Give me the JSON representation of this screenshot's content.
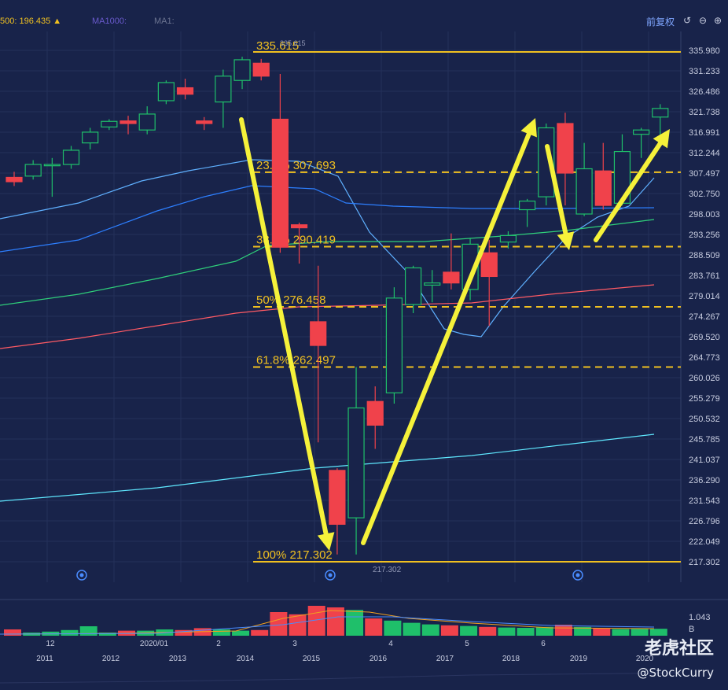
{
  "toolbar": {
    "ma_labels": [
      {
        "text": "500: 196.435 ▲",
        "color": "#f0c020"
      },
      {
        "text": "MA1000:",
        "color": "#6a5acd"
      },
      {
        "text": "MA1:",
        "color": "#6b7390"
      }
    ],
    "fuquan_label": "前复权",
    "controls": [
      {
        "name": "undo-icon",
        "glyph": "↺"
      },
      {
        "name": "zoom-out-icon",
        "glyph": "⊖"
      },
      {
        "name": "zoom-in-icon",
        "glyph": "⊕"
      }
    ]
  },
  "colors": {
    "background": "#18234a",
    "up": "#1fbf6a",
    "down": "#f0424b",
    "fib": "#f0c020",
    "arrow": "#f5f13a",
    "grid": "#24305a",
    "axis_text": "#c8cde0"
  },
  "watermark": {
    "brand": "老虎社区",
    "handle": "@StockCurry"
  },
  "chart_data": {
    "type": "candlestick",
    "ylim": [
      214.5,
      338.5
    ],
    "y_ticks": [
      "335.980",
      "331.233",
      "326.486",
      "321.738",
      "316.991",
      "312.244",
      "307.497",
      "302.750",
      "298.003",
      "293.256",
      "288.509",
      "283.761",
      "279.014",
      "274.267",
      "269.520",
      "264.773",
      "260.026",
      "255.279",
      "250.532",
      "245.785",
      "241.037",
      "236.290",
      "231.543",
      "226.796",
      "222.049",
      "217.302"
    ],
    "x_labels_top": [
      "12",
      "2020/01",
      "2",
      "3",
      "4",
      "5",
      "6"
    ],
    "x_labels_bottom": [
      "2011",
      "2012",
      "2013",
      "2014",
      "2015",
      "2016",
      "2017",
      "2018",
      "2019",
      "2020"
    ],
    "peak_label": "335.615",
    "low_label": "217.302",
    "fib_levels": [
      {
        "label": "23.6% 307.693",
        "price": 307.693,
        "style": "dashed"
      },
      {
        "label": "38.2% 290.419",
        "price": 290.419,
        "style": "dashed"
      },
      {
        "label": "50% 276.458",
        "price": 276.458,
        "style": "dashed"
      },
      {
        "label": "61.8% 262.497",
        "price": 262.497,
        "style": "dashed"
      },
      {
        "label": "100% 217.302",
        "price": 217.302,
        "style": "solid"
      }
    ],
    "top_line": {
      "label": "335.615",
      "price": 335.615
    },
    "candles": [
      {
        "o": 306.5,
        "h": 307.8,
        "c": 305.5,
        "l": 304.5
      },
      {
        "o": 306.8,
        "h": 310.5,
        "c": 309.5,
        "l": 306.0
      },
      {
        "o": 309.2,
        "h": 311.0,
        "c": 309.5,
        "l": 302.0
      },
      {
        "o": 309.5,
        "h": 313.8,
        "c": 312.8,
        "l": 308.5
      },
      {
        "o": 314.5,
        "h": 318.0,
        "c": 317.0,
        "l": 313.0
      },
      {
        "o": 318.2,
        "h": 320.0,
        "c": 319.5,
        "l": 317.5
      },
      {
        "o": 319.6,
        "h": 320.8,
        "c": 319.0,
        "l": 316.5
      },
      {
        "o": 317.5,
        "h": 323.0,
        "c": 321.2,
        "l": 316.5
      },
      {
        "o": 324.3,
        "h": 329.0,
        "c": 328.5,
        "l": 323.5
      },
      {
        "o": 327.3,
        "h": 329.4,
        "c": 325.8,
        "l": 324.6
      },
      {
        "o": 319.6,
        "h": 320.5,
        "c": 319.0,
        "l": 317.5
      },
      {
        "o": 324.0,
        "h": 331.5,
        "c": 330.0,
        "l": 318.0
      },
      {
        "o": 329.0,
        "h": 334.5,
        "c": 333.8,
        "l": 327.0
      },
      {
        "o": 333.0,
        "h": 334.0,
        "c": 330.0,
        "l": 329.0
      },
      {
        "o": 320.0,
        "h": 330.5,
        "c": 290.3,
        "l": 289.0
      },
      {
        "o": 295.5,
        "h": 296.0,
        "c": 294.8,
        "l": 286.5
      },
      {
        "o": 273.0,
        "h": 286.0,
        "c": 267.5,
        "l": 245.0
      },
      {
        "o": 238.5,
        "h": 239.0,
        "c": 226.0,
        "l": 219.0
      },
      {
        "o": 227.5,
        "h": 262.5,
        "c": 253.0,
        "l": 219.0
      },
      {
        "o": 254.5,
        "h": 258.0,
        "c": 249.0,
        "l": 243.5
      },
      {
        "o": 256.5,
        "h": 281.0,
        "c": 278.5,
        "l": 254.0
      },
      {
        "o": 277.0,
        "h": 286.0,
        "c": 285.5,
        "l": 275.0
      },
      {
        "o": 281.5,
        "h": 285.0,
        "c": 282.0,
        "l": 277.5
      },
      {
        "o": 284.5,
        "h": 293.5,
        "c": 282.0,
        "l": 280.5
      },
      {
        "o": 280.5,
        "h": 292.5,
        "c": 291.0,
        "l": 278.0
      },
      {
        "o": 289.0,
        "h": 292.0,
        "c": 283.5,
        "l": 272.0
      },
      {
        "o": 291.5,
        "h": 294.0,
        "c": 293.0,
        "l": 290.0
      },
      {
        "o": 299.0,
        "h": 301.5,
        "c": 301.0,
        "l": 295.0
      },
      {
        "o": 302.0,
        "h": 319.0,
        "c": 318.0,
        "l": 300.0
      },
      {
        "o": 319.0,
        "h": 321.5,
        "c": 307.5,
        "l": 300.0
      },
      {
        "o": 298.0,
        "h": 314.5,
        "c": 308.5,
        "l": 297.5
      },
      {
        "o": 308.0,
        "h": 314.5,
        "c": 300.0,
        "l": 299.0
      },
      {
        "o": 300.5,
        "h": 316.5,
        "c": 312.5,
        "l": 300.0
      },
      {
        "o": 316.5,
        "h": 318.0,
        "c": 317.5,
        "l": 311.0
      },
      {
        "o": 320.5,
        "h": 323.5,
        "c": 322.5,
        "l": 314.0
      }
    ],
    "volume": {
      "label": "1.043\nB",
      "bars": [
        0.2,
        0.1,
        0.13,
        0.18,
        0.3,
        0.1,
        0.16,
        0.16,
        0.2,
        0.18,
        0.24,
        0.2,
        0.16,
        0.18,
        0.75,
        0.68,
        0.95,
        0.9,
        0.82,
        0.55,
        0.48,
        0.41,
        0.36,
        0.33,
        0.31,
        0.28,
        0.26,
        0.25,
        0.28,
        0.35,
        0.28,
        0.24,
        0.21,
        0.22,
        0.22
      ]
    }
  }
}
